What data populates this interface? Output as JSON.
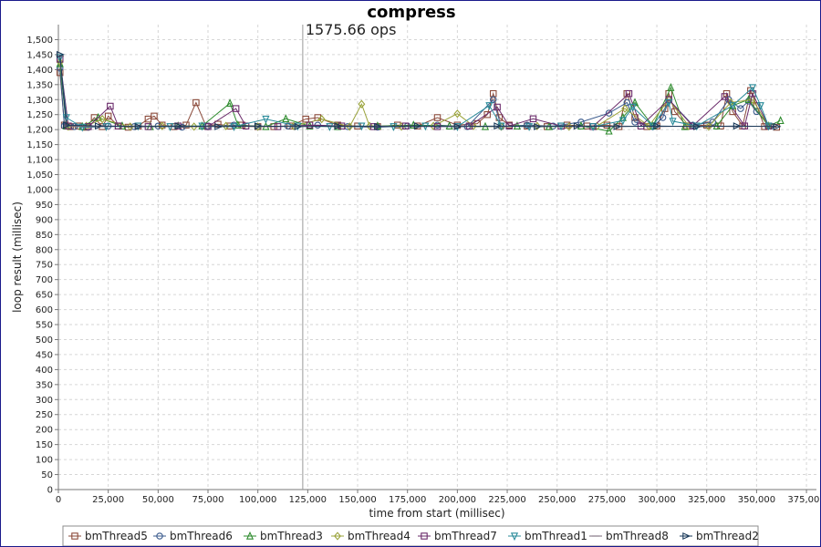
{
  "chart_data": {
    "type": "line",
    "title": "compress",
    "xlabel": "time from start (millisec)",
    "ylabel": "loop result (millisec)",
    "xlim": [
      0,
      380000
    ],
    "ylim": [
      0,
      1550
    ],
    "x_ticks": [
      0,
      25000,
      50000,
      75000,
      100000,
      125000,
      150000,
      175000,
      200000,
      225000,
      250000,
      275000,
      300000,
      325000,
      350000,
      375000
    ],
    "x_tick_labels": [
      "0",
      "25,000",
      "50,000",
      "75,000",
      "100,000",
      "125,000",
      "150,000",
      "175,000",
      "200,000",
      "225,000",
      "250,000",
      "275,000",
      "300,000",
      "325,000",
      "350,000",
      "375,000"
    ],
    "y_ticks": [
      0,
      50,
      100,
      150,
      200,
      250,
      300,
      350,
      400,
      450,
      500,
      550,
      600,
      650,
      700,
      750,
      800,
      850,
      900,
      950,
      1000,
      1050,
      1100,
      1150,
      1200,
      1250,
      1300,
      1350,
      1400,
      1450,
      1500
    ],
    "y_tick_labels": [
      "0",
      "50",
      "100",
      "150",
      "200",
      "250",
      "300",
      "350",
      "400",
      "450",
      "500",
      "550",
      "600",
      "650",
      "700",
      "750",
      "800",
      "850",
      "900",
      "950",
      "1,000",
      "1,050",
      "1,100",
      "1,150",
      "1,200",
      "1,250",
      "1,300",
      "1,350",
      "1,400",
      "1,450",
      "1,500"
    ],
    "grid": true,
    "legend_position": "bottom",
    "annotation": {
      "text": "1575.66 ops",
      "x": 122500
    },
    "series": [
      {
        "name": "bmThread5",
        "marker": "square",
        "color": "#8b4a3a",
        "points": [
          [
            800,
            1390
          ],
          [
            3000,
            1215
          ],
          [
            6000,
            1210
          ],
          [
            10000,
            1212
          ],
          [
            14000,
            1208
          ],
          [
            18000,
            1240
          ],
          [
            22000,
            1210
          ],
          [
            25000,
            1245
          ],
          [
            30000,
            1212
          ],
          [
            35000,
            1208
          ],
          [
            40000,
            1212
          ],
          [
            45000,
            1235
          ],
          [
            48000,
            1245
          ],
          [
            52000,
            1215
          ],
          [
            58000,
            1210
          ],
          [
            64000,
            1215
          ],
          [
            69000,
            1290
          ],
          [
            74000,
            1212
          ],
          [
            80000,
            1218
          ],
          [
            86000,
            1212
          ],
          [
            92000,
            1215
          ],
          [
            100000,
            1210
          ],
          [
            108000,
            1210
          ],
          [
            116000,
            1212
          ],
          [
            124000,
            1235
          ],
          [
            130000,
            1240
          ],
          [
            140000,
            1215
          ],
          [
            150000,
            1212
          ],
          [
            160000,
            1210
          ],
          [
            170000,
            1215
          ],
          [
            180000,
            1212
          ],
          [
            190000,
            1240
          ],
          [
            200000,
            1215
          ],
          [
            210000,
            1220
          ],
          [
            215000,
            1250
          ],
          [
            218000,
            1320
          ],
          [
            221000,
            1240
          ],
          [
            226000,
            1215
          ],
          [
            235000,
            1212
          ],
          [
            245000,
            1210
          ],
          [
            255000,
            1215
          ],
          [
            265000,
            1212
          ],
          [
            275000,
            1215
          ],
          [
            281000,
            1210
          ],
          [
            285000,
            1320
          ],
          [
            289000,
            1240
          ],
          [
            295000,
            1210
          ],
          [
            300000,
            1212
          ],
          [
            304000,
            1270
          ],
          [
            306000,
            1320
          ],
          [
            309000,
            1260
          ],
          [
            315000,
            1212
          ],
          [
            325000,
            1215
          ],
          [
            332000,
            1212
          ],
          [
            335000,
            1320
          ],
          [
            338000,
            1260
          ],
          [
            343000,
            1212
          ],
          [
            347000,
            1330
          ],
          [
            350000,
            1280
          ],
          [
            354000,
            1210
          ],
          [
            360000,
            1208
          ]
        ]
      },
      {
        "name": "bmThread6",
        "marker": "circle",
        "color": "#3a5a8c",
        "points": [
          [
            800,
            1405
          ],
          [
            3000,
            1212
          ],
          [
            8000,
            1210
          ],
          [
            15000,
            1208
          ],
          [
            25000,
            1212
          ],
          [
            38000,
            1210
          ],
          [
            50000,
            1212
          ],
          [
            62000,
            1208
          ],
          [
            75000,
            1212
          ],
          [
            88000,
            1215
          ],
          [
            100000,
            1210
          ],
          [
            115000,
            1212
          ],
          [
            130000,
            1215
          ],
          [
            145000,
            1210
          ],
          [
            160000,
            1208
          ],
          [
            175000,
            1212
          ],
          [
            190000,
            1215
          ],
          [
            205000,
            1210
          ],
          [
            218000,
            1300
          ],
          [
            222000,
            1210
          ],
          [
            235000,
            1215
          ],
          [
            248000,
            1212
          ],
          [
            262000,
            1225
          ],
          [
            276000,
            1255
          ],
          [
            285000,
            1290
          ],
          [
            289000,
            1225
          ],
          [
            298000,
            1210
          ],
          [
            303000,
            1240
          ],
          [
            306000,
            1300
          ],
          [
            318000,
            1215
          ],
          [
            328000,
            1225
          ],
          [
            336000,
            1300
          ],
          [
            342000,
            1270
          ],
          [
            346000,
            1295
          ],
          [
            350000,
            1260
          ],
          [
            357000,
            1212
          ]
        ]
      },
      {
        "name": "bmThread3",
        "marker": "triangle-up",
        "color": "#2e8b2e",
        "points": [
          [
            800,
            1420
          ],
          [
            4000,
            1212
          ],
          [
            12000,
            1210
          ],
          [
            20000,
            1240
          ],
          [
            32000,
            1212
          ],
          [
            46000,
            1210
          ],
          [
            60000,
            1212
          ],
          [
            72000,
            1212
          ],
          [
            86000,
            1288
          ],
          [
            90000,
            1215
          ],
          [
            104000,
            1210
          ],
          [
            114000,
            1236
          ],
          [
            126000,
            1212
          ],
          [
            140000,
            1210
          ],
          [
            160000,
            1212
          ],
          [
            178000,
            1215
          ],
          [
            196000,
            1212
          ],
          [
            214000,
            1210
          ],
          [
            230000,
            1212
          ],
          [
            246000,
            1210
          ],
          [
            262000,
            1212
          ],
          [
            276000,
            1195
          ],
          [
            283000,
            1240
          ],
          [
            289000,
            1290
          ],
          [
            298000,
            1212
          ],
          [
            307000,
            1340
          ],
          [
            314000,
            1210
          ],
          [
            330000,
            1212
          ],
          [
            338000,
            1280
          ],
          [
            346000,
            1300
          ],
          [
            356000,
            1212
          ],
          [
            362000,
            1230
          ]
        ]
      },
      {
        "name": "bmThread4",
        "marker": "diamond",
        "color": "#9aa33a",
        "points": [
          [
            800,
            1425
          ],
          [
            5000,
            1210
          ],
          [
            14000,
            1212
          ],
          [
            22000,
            1235
          ],
          [
            36000,
            1210
          ],
          [
            52000,
            1212
          ],
          [
            68000,
            1210
          ],
          [
            84000,
            1212
          ],
          [
            100000,
            1210
          ],
          [
            118000,
            1212
          ],
          [
            132000,
            1235
          ],
          [
            146000,
            1210
          ],
          [
            152000,
            1285
          ],
          [
            156000,
            1212
          ],
          [
            172000,
            1210
          ],
          [
            188000,
            1212
          ],
          [
            200000,
            1253
          ],
          [
            208000,
            1212
          ],
          [
            222000,
            1210
          ],
          [
            240000,
            1212
          ],
          [
            256000,
            1210
          ],
          [
            270000,
            1212
          ],
          [
            284000,
            1270
          ],
          [
            296000,
            1212
          ],
          [
            306000,
            1300
          ],
          [
            316000,
            1212
          ],
          [
            326000,
            1210
          ],
          [
            337000,
            1290
          ],
          [
            348000,
            1300
          ],
          [
            356000,
            1212
          ]
        ]
      },
      {
        "name": "bmThread7",
        "marker": "square",
        "color": "#6a2a6a",
        "points": [
          [
            800,
            1435
          ],
          [
            5000,
            1212
          ],
          [
            15000,
            1210
          ],
          [
            26000,
            1278
          ],
          [
            30000,
            1212
          ],
          [
            45000,
            1210
          ],
          [
            60000,
            1212
          ],
          [
            75000,
            1210
          ],
          [
            89000,
            1270
          ],
          [
            94000,
            1212
          ],
          [
            110000,
            1210
          ],
          [
            126000,
            1215
          ],
          [
            142000,
            1212
          ],
          [
            158000,
            1210
          ],
          [
            174000,
            1212
          ],
          [
            190000,
            1210
          ],
          [
            206000,
            1212
          ],
          [
            220000,
            1275
          ],
          [
            226000,
            1212
          ],
          [
            238000,
            1236
          ],
          [
            252000,
            1212
          ],
          [
            268000,
            1210
          ],
          [
            286000,
            1320
          ],
          [
            292000,
            1212
          ],
          [
            306000,
            1300
          ],
          [
            318000,
            1212
          ],
          [
            334000,
            1310
          ],
          [
            344000,
            1212
          ],
          [
            348000,
            1320
          ],
          [
            356000,
            1212
          ]
        ]
      },
      {
        "name": "bmThread1",
        "marker": "triangle-down",
        "color": "#2a8b9a",
        "points": [
          [
            800,
            1440
          ],
          [
            4000,
            1240
          ],
          [
            12000,
            1208
          ],
          [
            24000,
            1210
          ],
          [
            40000,
            1212
          ],
          [
            56000,
            1210
          ],
          [
            72000,
            1212
          ],
          [
            88000,
            1210
          ],
          [
            104000,
            1235
          ],
          [
            120000,
            1212
          ],
          [
            136000,
            1210
          ],
          [
            152000,
            1212
          ],
          [
            168000,
            1210
          ],
          [
            184000,
            1212
          ],
          [
            200000,
            1210
          ],
          [
            216000,
            1280
          ],
          [
            222000,
            1212
          ],
          [
            236000,
            1210
          ],
          [
            252000,
            1212
          ],
          [
            268000,
            1210
          ],
          [
            283000,
            1230
          ],
          [
            288000,
            1275
          ],
          [
            298000,
            1212
          ],
          [
            306000,
            1290
          ],
          [
            308000,
            1228
          ],
          [
            320000,
            1212
          ],
          [
            338000,
            1280
          ],
          [
            348000,
            1340
          ],
          [
            352000,
            1280
          ],
          [
            356000,
            1212
          ]
        ]
      },
      {
        "name": "bmThread8",
        "marker": "circle-line",
        "color": "#7a6a7a",
        "points": [
          [
            800,
            1445
          ],
          [
            4000,
            1212
          ],
          [
            20000,
            1210
          ],
          [
            40000,
            1212
          ],
          [
            60000,
            1210
          ],
          [
            80000,
            1212
          ],
          [
            100000,
            1210
          ],
          [
            120000,
            1212
          ],
          [
            140000,
            1210
          ],
          [
            160000,
            1212
          ],
          [
            180000,
            1210
          ],
          [
            200000,
            1212
          ],
          [
            220000,
            1210
          ],
          [
            240000,
            1212
          ],
          [
            260000,
            1210
          ],
          [
            280000,
            1212
          ],
          [
            300000,
            1210
          ],
          [
            320000,
            1212
          ],
          [
            340000,
            1210
          ],
          [
            360000,
            1212
          ]
        ]
      },
      {
        "name": "bmThread2",
        "marker": "triangle-right",
        "color": "#1a3a5a",
        "points": [
          [
            800,
            1450
          ],
          [
            4000,
            1215
          ],
          [
            20000,
            1212
          ],
          [
            40000,
            1210
          ],
          [
            60000,
            1212
          ],
          [
            80000,
            1210
          ],
          [
            100000,
            1212
          ],
          [
            120000,
            1210
          ],
          [
            140000,
            1212
          ],
          [
            160000,
            1210
          ],
          [
            180000,
            1212
          ],
          [
            200000,
            1210
          ],
          [
            220000,
            1212
          ],
          [
            240000,
            1210
          ],
          [
            260000,
            1212
          ],
          [
            280000,
            1210
          ],
          [
            300000,
            1212
          ],
          [
            320000,
            1210
          ],
          [
            340000,
            1212
          ],
          [
            360000,
            1210
          ]
        ]
      }
    ]
  }
}
